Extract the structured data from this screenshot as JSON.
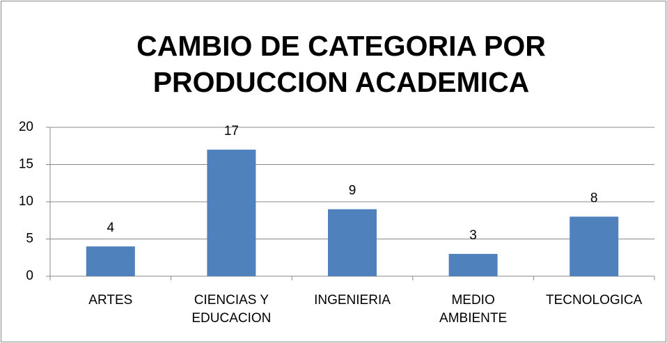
{
  "chart_data": {
    "type": "bar",
    "title": "CAMBIO DE CATEGORIA POR PRODUCCION ACADEMICA",
    "categories": [
      "ARTES",
      "CIENCIAS Y EDUCACION",
      "INGENIERIA",
      "MEDIO AMBIENTE",
      "TECNOLOGICA"
    ],
    "values": [
      4,
      17,
      9,
      3,
      8
    ],
    "color": "#4f81bd",
    "ylim": [
      0,
      20
    ],
    "yticks": [
      0,
      5,
      10,
      15,
      20
    ],
    "grid": true
  }
}
